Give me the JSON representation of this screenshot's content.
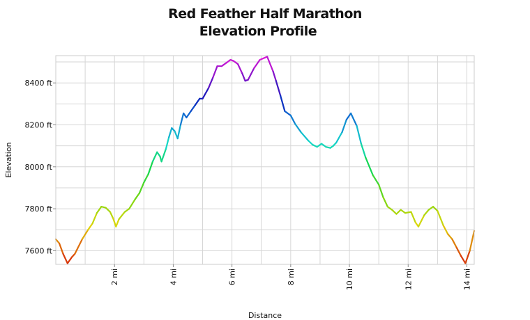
{
  "chart_data": {
    "type": "line",
    "title": "Red Feather Half Marathon",
    "subtitle": "Elevation Profile",
    "xlabel": "Distance",
    "ylabel": "Elevation",
    "x_unit": "mi",
    "y_unit": "ft",
    "xlim": [
      0,
      14.25
    ],
    "ylim": [
      7535,
      8530
    ],
    "x_ticks": [
      {
        "value": 2,
        "label": "2 mi"
      },
      {
        "value": 4,
        "label": "4 mi"
      },
      {
        "value": 6,
        "label": "6 mi"
      },
      {
        "value": 8,
        "label": "8 mi"
      },
      {
        "value": 10,
        "label": "10 mi"
      },
      {
        "value": 12,
        "label": "12 mi"
      },
      {
        "value": 14,
        "label": "14 mi"
      }
    ],
    "y_ticks": [
      {
        "value": 7600,
        "label": "7600 ft"
      },
      {
        "value": 7800,
        "label": "7800 ft"
      },
      {
        "value": 8000,
        "label": "8000 ft"
      },
      {
        "value": 8200,
        "label": "8200 ft"
      },
      {
        "value": 8400,
        "label": "8400 ft"
      }
    ],
    "grid": true,
    "legend": "none",
    "colormap": "elevation (red low → yellow → green → cyan → blue → magenta high)",
    "series": [
      {
        "x": [
          0,
          0.12,
          0.25,
          0.4,
          0.55,
          0.65,
          0.9,
          1.1,
          1.25,
          1.4,
          1.55,
          1.7,
          1.85,
          1.95,
          2.05,
          2.15,
          2.35,
          2.5,
          2.7,
          2.85,
          3.0,
          3.15,
          3.3,
          3.45,
          3.55,
          3.6,
          3.75,
          3.85,
          3.95,
          4.05,
          4.15,
          4.25,
          4.35,
          4.45,
          4.6,
          4.75,
          4.9,
          5.0,
          5.2,
          5.35,
          5.5,
          5.65,
          5.8,
          5.95,
          6.05,
          6.2,
          6.35,
          6.45,
          6.55,
          6.75,
          6.95,
          7.2,
          7.4,
          7.5,
          7.65,
          7.8,
          8.0,
          8.15,
          8.35,
          8.6,
          8.75,
          8.9,
          9.05,
          9.2,
          9.35,
          9.45,
          9.55,
          9.75,
          9.9,
          10.05,
          10.25,
          10.4,
          10.55,
          10.8,
          11.0,
          11.15,
          11.3,
          11.45,
          11.6,
          11.75,
          11.9,
          12.1,
          12.25,
          12.35,
          12.55,
          12.7,
          12.85,
          13.0,
          13.2,
          13.35,
          13.5,
          13.65,
          13.8,
          13.95,
          14.1,
          14.25
        ],
        "y": [
          7655,
          7635,
          7585,
          7540,
          7570,
          7585,
          7655,
          7700,
          7730,
          7780,
          7810,
          7805,
          7785,
          7755,
          7715,
          7750,
          7785,
          7800,
          7845,
          7875,
          7925,
          7965,
          8025,
          8070,
          8050,
          8025,
          8085,
          8140,
          8185,
          8170,
          8135,
          8200,
          8255,
          8235,
          8265,
          8295,
          8325,
          8325,
          8375,
          8425,
          8480,
          8480,
          8495,
          8510,
          8505,
          8490,
          8445,
          8410,
          8415,
          8470,
          8510,
          8525,
          8455,
          8410,
          8340,
          8265,
          8245,
          8205,
          8165,
          8125,
          8105,
          8095,
          8110,
          8095,
          8090,
          8100,
          8115,
          8165,
          8225,
          8255,
          8195,
          8110,
          8045,
          7960,
          7915,
          7855,
          7810,
          7795,
          7775,
          7795,
          7780,
          7785,
          7735,
          7715,
          7770,
          7795,
          7810,
          7790,
          7720,
          7680,
          7655,
          7615,
          7575,
          7540,
          7600,
          7695
        ]
      }
    ]
  }
}
